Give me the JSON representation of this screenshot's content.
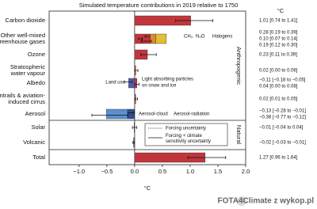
{
  "chart_data": {
    "type": "bar",
    "orientation": "horizontal",
    "title": "Simulated temperature contributions in 2019 relative to 1750",
    "unit_header": "°C",
    "x_label": "°C",
    "xlim": [
      -1.54,
      2.0
    ],
    "xticks": [
      {
        "value": -1.0,
        "label": "−1.0"
      },
      {
        "value": -0.5,
        "label": "−0.5"
      },
      {
        "value": 0.0,
        "label": "0.0"
      },
      0.5,
      {
        "value": 1.0,
        "label": "1.0"
      },
      1.5,
      {
        "value": 2.0,
        "label": "2.0"
      }
    ],
    "categories": [
      [
        "Carbon dioxide"
      ],
      [
        "Other well-mixed",
        "greenhouse gases"
      ],
      [
        "Ozone"
      ],
      [
        "Stratospheric",
        "water vapour"
      ],
      [
        "Albedo"
      ],
      [
        "Contrails & aviation-",
        "induced cirrus"
      ],
      [
        "Aerosol"
      ],
      [
        "Solar"
      ],
      [
        "Volcanic"
      ],
      [
        "Total"
      ]
    ],
    "rows": [
      {
        "segments": [
          {
            "value": 1.01,
            "low": 0.74,
            "high": 1.41,
            "value_label": "1.01 [0.74 to 1.41]",
            "color": "#c0363c"
          }
        ]
      },
      {
        "segments": [
          {
            "name": [
              "CH₄"
            ],
            "value": 0.28,
            "low": 0.19,
            "high": 0.39,
            "value_label": "0.28 [0.19 to 0.39]",
            "color": "#c0363c"
          },
          {
            "name": [
              "N₂O"
            ],
            "value": 0.1,
            "low": 0.07,
            "high": 0.14,
            "value_label": "0.10 [0.07 to 0.14]",
            "color": "#e08a2b"
          },
          {
            "name": [
              "Halogens"
            ],
            "value": 0.19,
            "low": 0.12,
            "high": 0.3,
            "value_label": "0.19 [0.12 to 0.30]",
            "color": "#e3bd33"
          }
        ]
      },
      {
        "segments": [
          {
            "value": 0.23,
            "low": 0.11,
            "high": 0.39,
            "value_label": "0.23 [0.11 to 0.39]",
            "color": "#c0363c"
          }
        ]
      },
      {
        "segments": [
          {
            "value": 0.02,
            "low": 0.0,
            "high": 0.06,
            "value_label": "0.02 [0.00 to 0.06]",
            "color": "#c0363c"
          }
        ]
      },
      {
        "segments": [
          {
            "name": [
              "Land use"
            ],
            "value": -0.11,
            "low": -0.18,
            "high": -0.05,
            "value_label": "−0.11 [−0.18 to −0.05]",
            "color": "#4f5fae"
          },
          {
            "name": [
              "Light absorbing particles",
              "on snow and ice"
            ],
            "value": 0.04,
            "low": 0.0,
            "high": 0.08,
            "value_label": "0.04 [0.00 to 0.08]",
            "color": "#c0363c"
          }
        ]
      },
      {
        "segments": [
          {
            "value": 0.02,
            "low": 0.01,
            "high": 0.05,
            "value_label": "0.02 [0.01 to 0.05]",
            "color": "#c0363c"
          }
        ]
      },
      {
        "segments": [
          {
            "name": [
              "Aerosol-radiation"
            ],
            "value": -0.13,
            "low": -0.28,
            "high": -0.01,
            "value_label": "−0.13 [−0.28 to −0.01]",
            "color": "#2e4e8e"
          },
          {
            "name": [
              "Aerosol-cloud"
            ],
            "value": -0.38,
            "low": -0.77,
            "high": -0.12,
            "value_label": "−0.38 [−0.77 to −0.12]",
            "color": "#5b8fd0"
          }
        ]
      },
      {
        "segments": [
          {
            "value": -0.01,
            "low": -0.04,
            "high": 0.04,
            "value_label": "−0.01 [−0.04 to 0.04]",
            "color": "#777777"
          }
        ]
      },
      {
        "segments": [
          {
            "value": -0.02,
            "low": -0.03,
            "high": -0.01,
            "value_label": "−0.02 [−0.03 to −0.01]",
            "color": "#777777"
          }
        ]
      },
      {
        "segments": [
          {
            "value": 1.27,
            "low": 0.96,
            "high": 1.64,
            "value_label": "1.27 [0.96 to 1.64]",
            "color": "#c0363c"
          }
        ]
      }
    ],
    "groups": [
      "Anthropogenic",
      "Natural"
    ],
    "uncertainty_legend": [
      [
        "Forcing uncertainty"
      ],
      [
        "Forcing + climate",
        "sensitivity uncertainty"
      ]
    ],
    "watermark": "FOTA4Climate z wykop.pl"
  }
}
